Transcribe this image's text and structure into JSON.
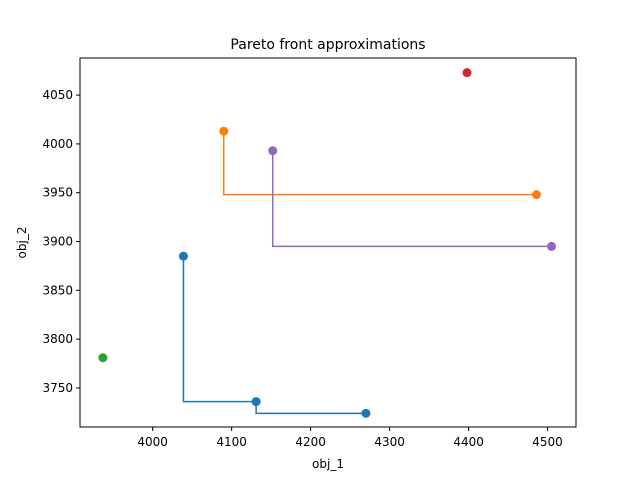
{
  "chart_data": {
    "type": "line",
    "title": "Pareto front approximations",
    "xlabel": "obj_1",
    "ylabel": "obj_2",
    "xlim": [
      3908,
      4536
    ],
    "ylim": [
      3710,
      4088
    ],
    "xticks": [
      4000,
      4100,
      4200,
      4300,
      4400,
      4500
    ],
    "yticks": [
      3750,
      3800,
      3850,
      3900,
      3950,
      4000,
      4050
    ],
    "grid": false,
    "legend": false,
    "series": [
      {
        "color": "#1f77b4",
        "style": "step",
        "points": [
          [
            4039,
            3885
          ],
          [
            4131,
            3736
          ],
          [
            4270,
            3724
          ]
        ]
      },
      {
        "color": "#ff7f0e",
        "style": "step",
        "points": [
          [
            4090,
            4013
          ],
          [
            4486,
            3948
          ]
        ]
      },
      {
        "color": "#2ca02c",
        "style": "markers",
        "points": [
          [
            3937,
            3781
          ]
        ]
      },
      {
        "color": "#d62728",
        "style": "markers",
        "points": [
          [
            4398,
            4073
          ]
        ]
      },
      {
        "color": "#9467bd",
        "style": "step",
        "points": [
          [
            4152,
            3993
          ],
          [
            4505,
            3895
          ]
        ]
      }
    ]
  }
}
